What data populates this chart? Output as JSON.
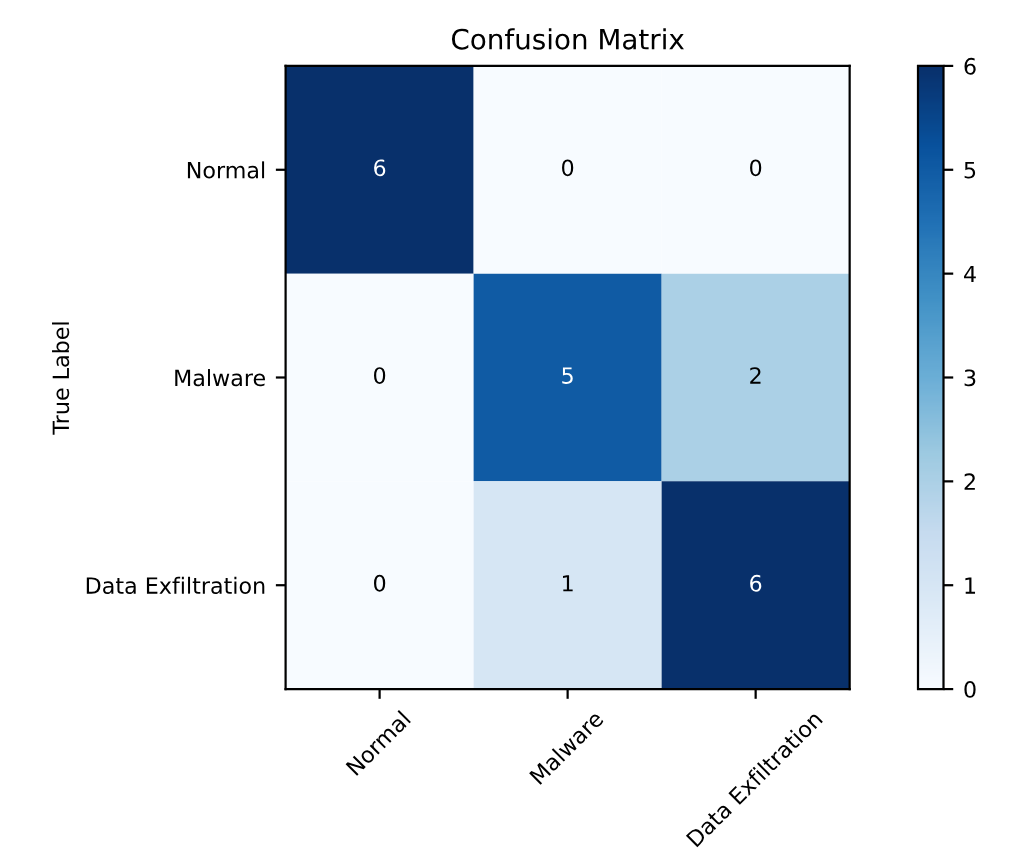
{
  "chart_data": {
    "type": "heatmap",
    "title": "Confusion Matrix",
    "ylabel": "True Label",
    "categories": [
      "Normal",
      "Malware",
      "Data Exfiltration"
    ],
    "y_categories": [
      "Normal",
      "Malware",
      "Data Exfiltration"
    ],
    "cells": [
      [
        6,
        0,
        0
      ],
      [
        0,
        5,
        2
      ],
      [
        0,
        1,
        6
      ]
    ],
    "data_labels": true,
    "clim": [
      0,
      6
    ],
    "cticks": [
      0,
      1,
      2,
      3,
      4,
      5,
      6
    ]
  }
}
